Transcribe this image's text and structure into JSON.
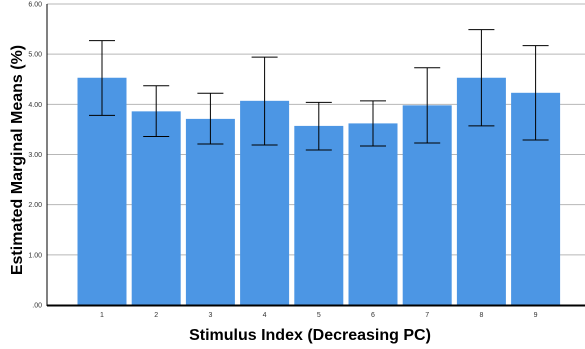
{
  "chart_data": {
    "type": "bar",
    "xlabel": "Stimulus Index (Decreasing PC)",
    "ylabel": "Estimated Marginal Means (%)",
    "categories": [
      "1",
      "2",
      "3",
      "4",
      "5",
      "6",
      "7",
      "8",
      "9"
    ],
    "values": [
      4.53,
      3.86,
      3.71,
      4.07,
      3.57,
      3.62,
      3.98,
      4.53,
      4.23
    ],
    "error_low": [
      3.78,
      3.36,
      3.21,
      3.19,
      3.09,
      3.17,
      3.23,
      3.57,
      3.29
    ],
    "error_high": [
      5.27,
      4.37,
      4.22,
      4.94,
      4.04,
      4.07,
      4.73,
      5.49,
      5.17
    ],
    "ylim": [
      0,
      6
    ],
    "yticks": [
      ".00",
      "1.00",
      "2.00",
      "3.00",
      "4.00",
      "5.00",
      "6.00"
    ],
    "grid": true,
    "bar_color": "#4c96e4",
    "grid_color": "#b7b7b7"
  }
}
